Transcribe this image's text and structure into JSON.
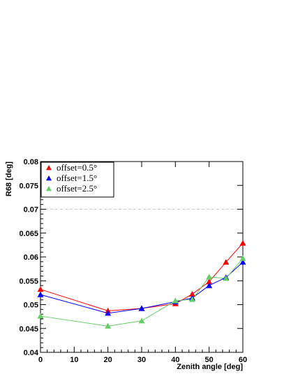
{
  "chart_data": {
    "type": "line",
    "xlabel": "Zenith angle [deg]",
    "ylabel": "R68 [deg]",
    "xlim": [
      0,
      60
    ],
    "ylim": [
      0.04,
      0.08
    ],
    "xticks": [
      0,
      10,
      20,
      30,
      40,
      50,
      60
    ],
    "yticks": [
      0.04,
      0.045,
      0.05,
      0.055,
      0.06,
      0.065,
      0.07,
      0.075,
      0.08
    ],
    "ytick_labels": [
      "0.04",
      "0.045",
      "0.05",
      "0.055",
      "0.06",
      "0.065",
      "0.07",
      "0.075",
      "0.08"
    ],
    "reference_line": 0.07,
    "legend_position": "top-left",
    "series": [
      {
        "name": "offset=0.5°",
        "color": "#ff0000",
        "x": [
          0,
          20,
          30,
          40,
          45,
          50,
          55,
          60
        ],
        "values": [
          0.0532,
          0.0487,
          0.0492,
          0.0502,
          0.0522,
          0.0548,
          0.0589,
          0.0629
        ]
      },
      {
        "name": "offset=1.5°",
        "color": "#0000ff",
        "x": [
          0,
          20,
          30,
          40,
          45,
          50,
          55,
          60
        ],
        "values": [
          0.0521,
          0.0482,
          0.0492,
          0.0506,
          0.0514,
          0.054,
          0.0557,
          0.0589
        ]
      },
      {
        "name": "offset=2.5°",
        "color": "#66cc66",
        "x": [
          0,
          20,
          30,
          40,
          45,
          50,
          55,
          60
        ],
        "values": [
          0.0476,
          0.0455,
          0.0466,
          0.0508,
          0.0511,
          0.0558,
          0.0555,
          0.0597
        ]
      }
    ]
  }
}
